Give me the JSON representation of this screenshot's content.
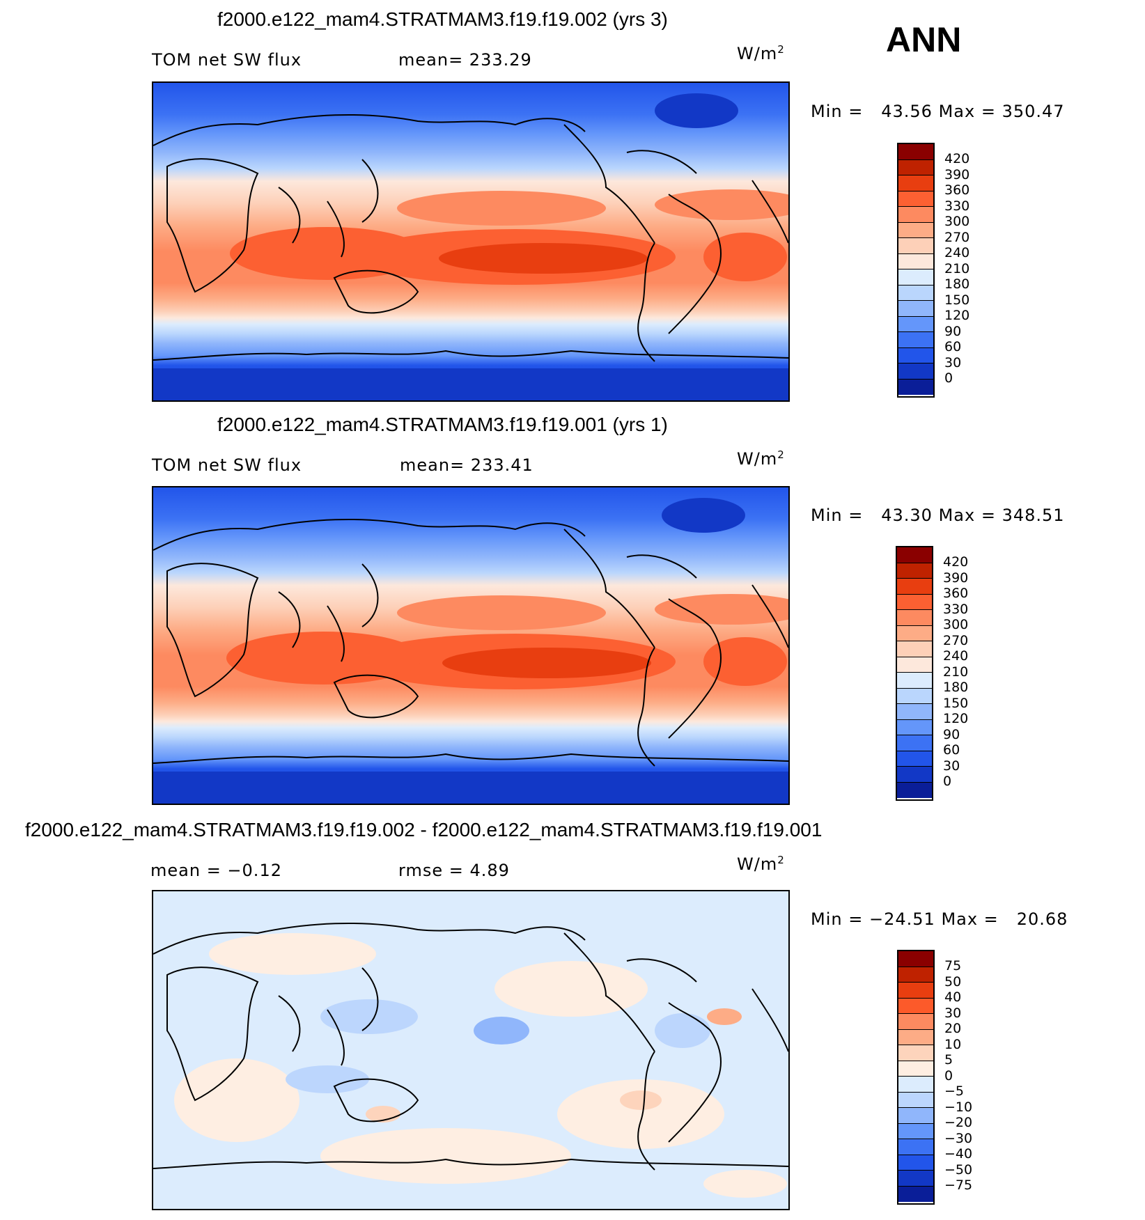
{
  "header": {
    "season": "ANN"
  },
  "colors": {
    "abs_palette": [
      "#8a0000",
      "#bf2200",
      "#e83e10",
      "#fc6032",
      "#fd8a60",
      "#fdac86",
      "#fdd0b8",
      "#fde8dc",
      "#dcecfd",
      "#bad6fd",
      "#90b6fb",
      "#6496fa",
      "#3c72f4",
      "#2255ea",
      "#1238c6",
      "#0a1e98",
      "#000a80"
    ],
    "diff_palette": [
      "#8a0000",
      "#bf2200",
      "#e83e10",
      "#fc5a2a",
      "#fd8a60",
      "#fdac86",
      "#fdd4bc",
      "#feeee2",
      "#dcecfd",
      "#bcd6fd",
      "#90b6fb",
      "#6496fa",
      "#3c72f4",
      "#2255ea",
      "#1238c6",
      "#0a1e98",
      "#000a80"
    ]
  },
  "panels": [
    {
      "title": "f2000.e122_mam4.STRATMAM3.f19.f19.002 (yrs 3)",
      "left_label": "TOM net SW flux",
      "mid_label": "mean= 233.29",
      "unit": "W/m",
      "unit_sup": "2",
      "min_label": "Min =",
      "min_value": "43.56",
      "max_label": "Max =",
      "max_value": "350.47",
      "levels": [
        "420",
        "390",
        "360",
        "330",
        "300",
        "270",
        "240",
        "210",
        "180",
        "150",
        "120",
        "90",
        "60",
        "30",
        "0"
      ]
    },
    {
      "title": "f2000.e122_mam4.STRATMAM3.f19.f19.001 (yrs 1)",
      "left_label": "TOM net SW flux",
      "mid_label": "mean= 233.41",
      "unit": "W/m",
      "unit_sup": "2",
      "min_label": "Min =",
      "min_value": "43.30",
      "max_label": "Max =",
      "max_value": "348.51",
      "levels": [
        "420",
        "390",
        "360",
        "330",
        "300",
        "270",
        "240",
        "210",
        "180",
        "150",
        "120",
        "90",
        "60",
        "30",
        "0"
      ]
    },
    {
      "title": "f2000.e122_mam4.STRATMAM3.f19.f19.002 - f2000.e122_mam4.STRATMAM3.f19.f19.001",
      "left_label": "mean =   −0.12",
      "mid_label": "rmse =    4.89",
      "unit": "W/m",
      "unit_sup": "2",
      "min_label": "Min =",
      "min_value": "−24.51",
      "max_label": "Max =",
      "max_value": "20.68",
      "levels": [
        "75",
        "50",
        "40",
        "30",
        "20",
        "10",
        "5",
        "0",
        "−5",
        "−10",
        "−20",
        "−30",
        "−40",
        "−50",
        "−75"
      ]
    }
  ]
}
